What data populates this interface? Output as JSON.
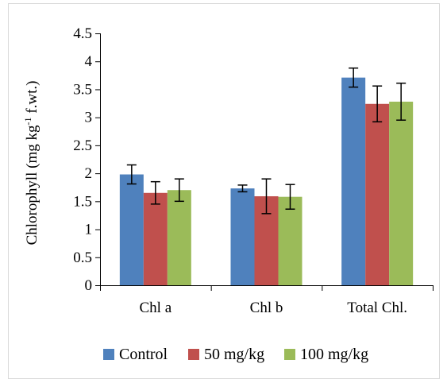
{
  "chart_data": {
    "type": "bar",
    "ylabel": "Chlorophyll (mg kg",
    "ylabel_sup": "-1",
    "ylabel_suffix": " f.wt.)",
    "xlabel": "",
    "ylim": [
      0,
      4.5
    ],
    "yticks": [
      "0",
      "0.5",
      "1",
      "1.5",
      "2",
      "2.5",
      "3",
      "3.5",
      "4",
      "4.5"
    ],
    "categories": [
      "Chl a",
      "Chl b",
      "Total Chl."
    ],
    "series": [
      {
        "name": "Control",
        "color": "#4f81bd",
        "values": [
          1.98,
          1.73,
          3.71
        ],
        "errors": [
          0.17,
          0.06,
          0.17
        ]
      },
      {
        "name": "50 mg/kg",
        "color": "#c0504d",
        "values": [
          1.65,
          1.59,
          3.24
        ],
        "errors": [
          0.2,
          0.31,
          0.32
        ]
      },
      {
        "name": "100 mg/kg",
        "color": "#9bbb59",
        "values": [
          1.7,
          1.58,
          3.28
        ],
        "errors": [
          0.2,
          0.22,
          0.33
        ]
      }
    ],
    "legend_position": "bottom",
    "grid": false
  }
}
